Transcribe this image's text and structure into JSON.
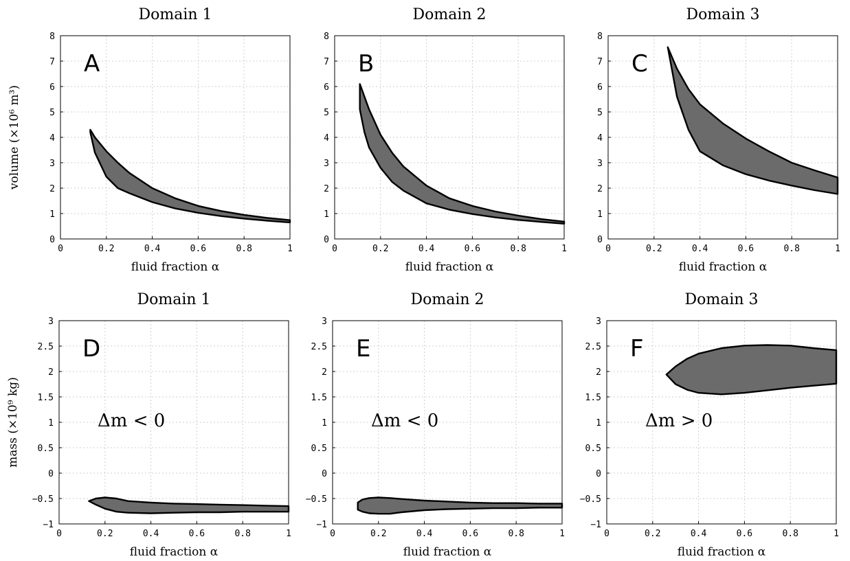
{
  "chart_data": [
    {
      "type": "area",
      "title": "Domain 1",
      "panel_label": "A",
      "xlabel": "fluid fraction α",
      "ylabel": "volume (×10⁶ m³)",
      "xlim": [
        0,
        1
      ],
      "ylim": [
        0,
        8
      ],
      "xticks": [
        "0",
        "0.2",
        "0.4",
        "0.6",
        "0.8",
        "1"
      ],
      "yticks": [
        "0",
        "1",
        "2",
        "3",
        "4",
        "5",
        "6",
        "7",
        "8"
      ],
      "grid": true,
      "upper": {
        "x": [
          0.13,
          0.15,
          0.2,
          0.25,
          0.3,
          0.4,
          0.5,
          0.6,
          0.7,
          0.8,
          0.9,
          1.0
        ],
        "y": [
          4.3,
          4.0,
          3.45,
          3.0,
          2.6,
          2.0,
          1.6,
          1.3,
          1.1,
          0.95,
          0.83,
          0.74
        ]
      },
      "lower": {
        "x": [
          0.13,
          0.15,
          0.2,
          0.25,
          0.3,
          0.4,
          0.5,
          0.6,
          0.7,
          0.8,
          0.9,
          1.0
        ],
        "y": [
          4.2,
          3.4,
          2.45,
          2.0,
          1.8,
          1.45,
          1.2,
          1.03,
          0.9,
          0.8,
          0.72,
          0.65
        ]
      }
    },
    {
      "type": "area",
      "title": "Domain 2",
      "panel_label": "B",
      "xlabel": "fluid fraction α",
      "xlim": [
        0,
        1
      ],
      "ylim": [
        0,
        8
      ],
      "xticks": [
        "0",
        "0.2",
        "0.4",
        "0.6",
        "0.8",
        "1"
      ],
      "yticks": [
        "0",
        "1",
        "2",
        "3",
        "4",
        "5",
        "6",
        "7",
        "8"
      ],
      "grid": true,
      "upper": {
        "x": [
          0.11,
          0.13,
          0.15,
          0.2,
          0.25,
          0.3,
          0.4,
          0.5,
          0.6,
          0.7,
          0.8,
          0.9,
          1.0
        ],
        "y": [
          6.1,
          5.6,
          5.1,
          4.1,
          3.4,
          2.85,
          2.1,
          1.6,
          1.3,
          1.08,
          0.92,
          0.78,
          0.68
        ]
      },
      "lower": {
        "x": [
          0.11,
          0.13,
          0.15,
          0.2,
          0.25,
          0.3,
          0.4,
          0.5,
          0.6,
          0.7,
          0.8,
          0.9,
          1.0
        ],
        "y": [
          5.1,
          4.2,
          3.6,
          2.8,
          2.25,
          1.9,
          1.4,
          1.15,
          0.98,
          0.85,
          0.75,
          0.67,
          0.6
        ]
      }
    },
    {
      "type": "area",
      "title": "Domain 3",
      "panel_label": "C",
      "xlabel": "fluid fraction α",
      "xlim": [
        0,
        1
      ],
      "ylim": [
        0,
        8
      ],
      "xticks": [
        "0",
        "0.2",
        "0.4",
        "0.6",
        "0.8",
        "1"
      ],
      "yticks": [
        "0",
        "1",
        "2",
        "3",
        "4",
        "5",
        "6",
        "7",
        "8"
      ],
      "grid": true,
      "upper": {
        "x": [
          0.26,
          0.3,
          0.35,
          0.4,
          0.5,
          0.6,
          0.7,
          0.8,
          0.9,
          1.0
        ],
        "y": [
          7.55,
          6.7,
          5.9,
          5.3,
          4.55,
          3.95,
          3.45,
          3.0,
          2.7,
          2.42
        ]
      },
      "lower": {
        "x": [
          0.26,
          0.3,
          0.35,
          0.4,
          0.5,
          0.6,
          0.7,
          0.8,
          0.9,
          1.0
        ],
        "y": [
          7.55,
          5.6,
          4.3,
          3.45,
          2.9,
          2.55,
          2.3,
          2.1,
          1.92,
          1.77
        ]
      }
    },
    {
      "type": "area",
      "title": "Domain 1",
      "panel_label": "D",
      "annotation": "Δm < 0",
      "xlabel": "fluid fraction α",
      "ylabel": "mass (×10⁹ kg)",
      "xlim": [
        0,
        1
      ],
      "ylim": [
        -1,
        3
      ],
      "xticks": [
        "0",
        "0.2",
        "0.4",
        "0.6",
        "0.8",
        "1"
      ],
      "yticks": [
        "−1",
        "−0.5",
        "0",
        "0.5",
        "1",
        "1.5",
        "2",
        "2.5",
        "3"
      ],
      "grid": true,
      "upper": {
        "x": [
          0.13,
          0.16,
          0.2,
          0.25,
          0.3,
          0.4,
          0.5,
          0.6,
          0.7,
          0.8,
          0.9,
          1.0
        ],
        "y": [
          -0.55,
          -0.5,
          -0.48,
          -0.5,
          -0.55,
          -0.58,
          -0.6,
          -0.61,
          -0.62,
          -0.63,
          -0.64,
          -0.65
        ]
      },
      "lower": {
        "x": [
          0.13,
          0.16,
          0.2,
          0.25,
          0.3,
          0.4,
          0.5,
          0.6,
          0.7,
          0.8,
          0.9,
          1.0
        ],
        "y": [
          -0.55,
          -0.62,
          -0.7,
          -0.76,
          -0.78,
          -0.79,
          -0.78,
          -0.77,
          -0.77,
          -0.76,
          -0.76,
          -0.76
        ]
      }
    },
    {
      "type": "area",
      "title": "Domain 2",
      "panel_label": "E",
      "annotation": "Δm < 0",
      "xlabel": "fluid fraction α",
      "xlim": [
        0,
        1
      ],
      "ylim": [
        -1,
        3
      ],
      "xticks": [
        "0",
        "0.2",
        "0.4",
        "0.6",
        "0.8",
        "1"
      ],
      "yticks": [
        "−1",
        "−0.5",
        "0",
        "0.5",
        "1",
        "1.5",
        "2",
        "2.5",
        "3"
      ],
      "grid": true,
      "upper": {
        "x": [
          0.11,
          0.13,
          0.16,
          0.2,
          0.25,
          0.3,
          0.4,
          0.5,
          0.6,
          0.7,
          0.8,
          0.9,
          1.0
        ],
        "y": [
          -0.58,
          -0.52,
          -0.49,
          -0.48,
          -0.49,
          -0.51,
          -0.54,
          -0.56,
          -0.58,
          -0.59,
          -0.59,
          -0.6,
          -0.6
        ]
      },
      "lower": {
        "x": [
          0.11,
          0.13,
          0.16,
          0.2,
          0.25,
          0.3,
          0.4,
          0.5,
          0.6,
          0.7,
          0.8,
          0.9,
          1.0
        ],
        "y": [
          -0.72,
          -0.76,
          -0.79,
          -0.8,
          -0.8,
          -0.77,
          -0.73,
          -0.71,
          -0.7,
          -0.69,
          -0.69,
          -0.68,
          -0.68
        ]
      }
    },
    {
      "type": "area",
      "title": "Domain 3",
      "panel_label": "F",
      "annotation": "Δm > 0",
      "xlabel": "fluid fraction α",
      "xlim": [
        0,
        1
      ],
      "ylim": [
        -1,
        3
      ],
      "xticks": [
        "0",
        "0.2",
        "0.4",
        "0.6",
        "0.8",
        "1"
      ],
      "yticks": [
        "−1",
        "−0.5",
        "0",
        "0.5",
        "1",
        "1.5",
        "2",
        "2.5",
        "3"
      ],
      "grid": true,
      "upper": {
        "x": [
          0.26,
          0.3,
          0.35,
          0.4,
          0.5,
          0.6,
          0.7,
          0.8,
          0.9,
          1.0
        ],
        "y": [
          1.94,
          2.1,
          2.25,
          2.35,
          2.46,
          2.51,
          2.52,
          2.51,
          2.46,
          2.42
        ]
      },
      "lower": {
        "x": [
          0.26,
          0.3,
          0.35,
          0.4,
          0.5,
          0.6,
          0.7,
          0.8,
          0.9,
          1.0
        ],
        "y": [
          1.94,
          1.75,
          1.64,
          1.58,
          1.55,
          1.58,
          1.63,
          1.68,
          1.72,
          1.76
        ]
      }
    }
  ]
}
